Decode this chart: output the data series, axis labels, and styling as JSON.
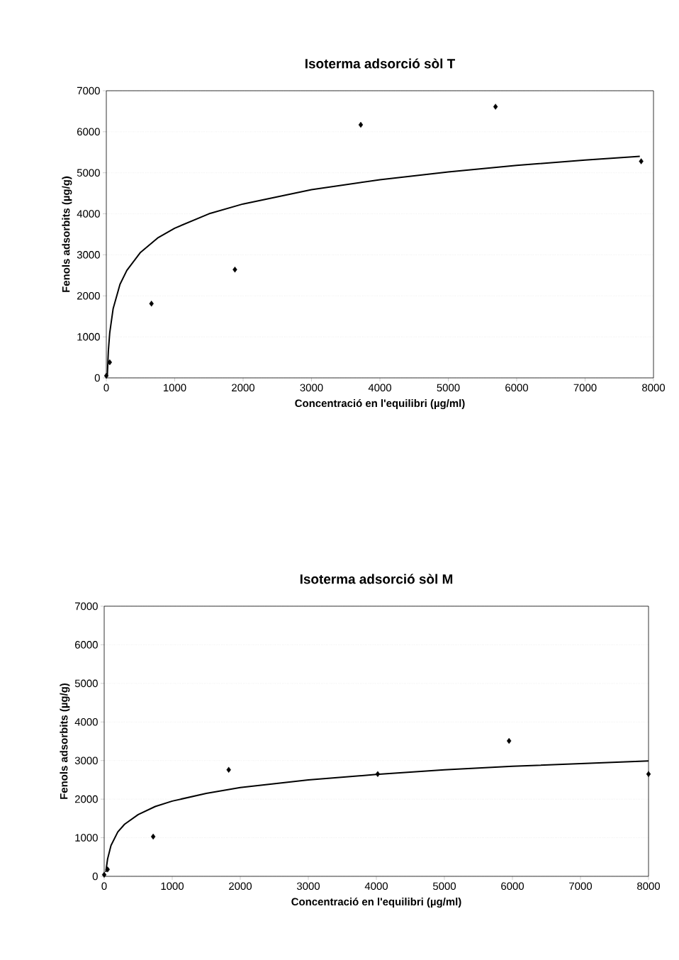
{
  "chart_data": [
    {
      "type": "scatter",
      "title": "Isoterma adsorció sòl T",
      "xlabel": "Concentració en l'equilibri (µg/ml)",
      "ylabel": "Fenols adsorbits (µg/g)",
      "xlim": [
        0,
        8000
      ],
      "ylim": [
        0,
        7000
      ],
      "xticks": [
        0,
        1000,
        2000,
        3000,
        4000,
        5000,
        6000,
        7000,
        8000
      ],
      "yticks": [
        0,
        1000,
        2000,
        3000,
        4000,
        5000,
        6000,
        7000
      ],
      "grid": "y",
      "series": [
        {
          "type": "scatter",
          "marker": "diamond",
          "color": "#000000",
          "x": [
            0,
            50,
            660,
            1880,
            3720,
            5690,
            7820
          ],
          "values": [
            50,
            380,
            1810,
            2640,
            6170,
            6610,
            5280
          ]
        },
        {
          "type": "line",
          "marker": "none",
          "line_style": "solid",
          "color": "#000000",
          "x": [
            15,
            30,
            50,
            100,
            200,
            300,
            500,
            750,
            1000,
            1500,
            2000,
            3000,
            4000,
            5000,
            6000,
            7000,
            7800
          ],
          "values": [
            70,
            660,
            1100,
            1690,
            2280,
            2620,
            3060,
            3410,
            3650,
            4000,
            4240,
            4590,
            4830,
            5020,
            5180,
            5310,
            5400
          ]
        }
      ]
    },
    {
      "type": "scatter",
      "title": "Isoterma adsorció sòl M",
      "xlabel": "Concentració en l'equilibri (µg/ml)",
      "ylabel": "Fenols adsorbits (µg/g)",
      "xlim": [
        0,
        8000
      ],
      "ylim": [
        0,
        7000
      ],
      "xticks": [
        0,
        1000,
        2000,
        3000,
        4000,
        5000,
        6000,
        7000,
        8000
      ],
      "yticks": [
        0,
        1000,
        2000,
        3000,
        4000,
        5000,
        6000,
        7000
      ],
      "grid": "y",
      "series": [
        {
          "type": "scatter",
          "marker": "diamond",
          "color": "#000000",
          "x": [
            0,
            50,
            720,
            1830,
            4020,
            5950,
            8000
          ],
          "values": [
            40,
            180,
            1030,
            2760,
            2650,
            3510,
            2650
          ]
        },
        {
          "type": "line",
          "marker": "none",
          "line_style": "solid",
          "color": "#000000",
          "x": [
            25,
            30,
            50,
            100,
            200,
            300,
            500,
            750,
            1000,
            1500,
            2000,
            3000,
            4000,
            5000,
            6000,
            7000,
            8000
          ],
          "values": [
            110,
            200,
            450,
            800,
            1150,
            1350,
            1600,
            1810,
            1950,
            2150,
            2300,
            2500,
            2640,
            2760,
            2850,
            2920,
            2990
          ]
        }
      ]
    }
  ]
}
